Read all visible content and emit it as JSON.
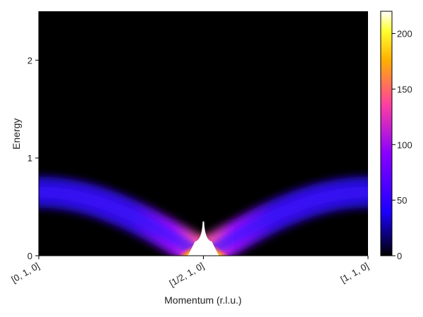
{
  "chart_data": {
    "type": "heatmap",
    "xlabel": "Momentum (r.l.u.)",
    "ylabel": "Energy",
    "x_ticks": [
      {
        "value": 0,
        "label": "[0, 1, 0]"
      },
      {
        "value": 0.5,
        "label": "[1/2, 1, 0]"
      },
      {
        "value": 1,
        "label": "[1, 1, 0]"
      }
    ],
    "y_ticks": [
      {
        "value": 0,
        "label": "0"
      },
      {
        "value": 1,
        "label": "1"
      },
      {
        "value": 2,
        "label": "2"
      }
    ],
    "xlim": [
      0,
      1
    ],
    "ylim": [
      0,
      2.5
    ],
    "colorbar": {
      "range": [
        0,
        220
      ],
      "ticks": [
        {
          "value": 0,
          "label": "0"
        },
        {
          "value": 50,
          "label": "50"
        },
        {
          "value": 100,
          "label": "100"
        },
        {
          "value": 150,
          "label": "150"
        },
        {
          "value": 200,
          "label": "200"
        }
      ],
      "colors": [
        "#000000",
        "#1b00ff",
        "#8a00ff",
        "#ff40a0",
        "#ffb000",
        "#ffff30",
        "#ffffff"
      ]
    },
    "band": {
      "energy_at_zone_edge": 0.65,
      "energy_at_zone_center": 0.0,
      "peak_intensity": 220
    }
  }
}
